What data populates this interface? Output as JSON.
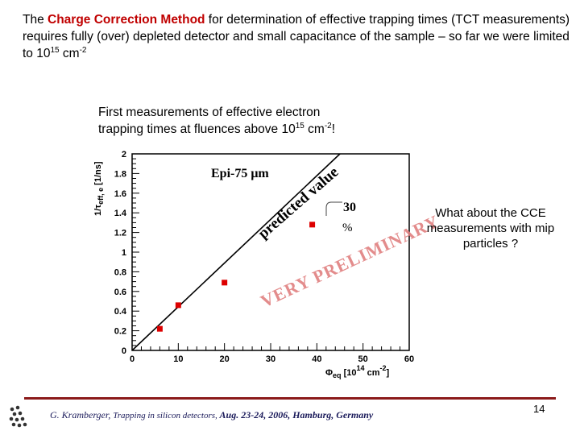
{
  "intro": {
    "before": "The ",
    "highlight": "Charge Correction Method",
    "after": " for determination of effective trapping times (TCT measurements) requires fully (over) depleted detector and small capacitance of the sample – so far we were limited to 10",
    "exponent": "15",
    "unit_text": " cm",
    "unit_exp": "-2"
  },
  "subhead": {
    "line1": "First measurements of effective electron",
    "line2_prefix": "trapping times at fluences above 10",
    "exponent": "15",
    "unit_text": " cm",
    "unit_exp": "-2",
    "suffix": "!"
  },
  "chart_data": {
    "type": "scatter",
    "xlabel": "Φeq [10^14 cm^-2]",
    "ylabel": "1/τeff,e [1/ns]",
    "xlim": [
      0,
      60
    ],
    "ylim": [
      0,
      2
    ],
    "xticks": [
      0,
      10,
      20,
      30,
      40,
      50,
      60
    ],
    "yticks": [
      0,
      0.2,
      0.4,
      0.6,
      0.8,
      1,
      1.2,
      1.4,
      1.6,
      1.8,
      2
    ],
    "xtick_labels": [
      "0",
      "10",
      "20",
      "30",
      "40",
      "50",
      "60"
    ],
    "ytick_labels": [
      "0",
      "0.2",
      "0.4",
      "0.6",
      "0.8",
      "1",
      "1.2",
      "1.4",
      "1.6",
      "1.8",
      "2"
    ],
    "points": [
      {
        "x": 6,
        "y": 0.22
      },
      {
        "x": 10,
        "y": 0.46
      },
      {
        "x": 20,
        "y": 0.69
      },
      {
        "x": 39,
        "y": 1.28
      }
    ],
    "predicted_line": {
      "x": [
        0,
        45
      ],
      "y": [
        0,
        2
      ]
    },
    "point_color": "#dd0000",
    "grid": false
  },
  "annotations": {
    "sample": "Epi-75 μm",
    "predicted": "predicted value",
    "percent_value": "30",
    "percent_sign": "%",
    "preliminary": "VERY PRELIMINARY"
  },
  "axis_labels": {
    "x_symbol": "Φ",
    "x_sub": "eq",
    "x_unit_a": " [10",
    "x_unit_exp": "14",
    "x_unit_b": " cm",
    "x_unit_exp2": "-2",
    "x_unit_c": "]",
    "y_prefix": "1/τ",
    "y_sub": "eff, e",
    "y_unit": " [1/ns]"
  },
  "side_note": "What about the CCE measurements with mip particles ?",
  "footer": {
    "author": "G. Kramberger, ",
    "topic": "Trapping in silicon detectors, ",
    "conference": "Aug.  23-24, 2006, Hamburg, Germany",
    "rule_color": "#8b1a1a"
  },
  "page_number": "14"
}
